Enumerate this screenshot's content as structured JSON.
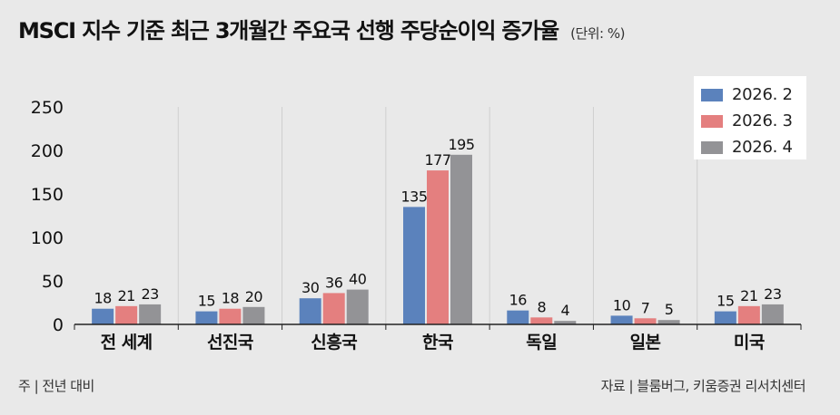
{
  "title": "MSCI 지수 기준 최근 3개월간 주요국 선행 주당순이익 증가율",
  "unit": "(단위: %)",
  "footer": {
    "note": "주 | 전년 대비",
    "source": "자료 |  블룸버그, 키움증권 리서치센터"
  },
  "colors": {
    "s1": "#5b82bc",
    "s2": "#e47f7f",
    "s3": "#939396",
    "axis": "#222222",
    "grid": "#cfcfcf",
    "background": "#e9e9e9"
  },
  "chart_data": {
    "type": "bar",
    "categories": [
      "전 세계",
      "선진국",
      "신흥국",
      "한국",
      "독일",
      "일본",
      "미국"
    ],
    "series": [
      {
        "name": "2026. 2",
        "values": [
          18,
          15,
          30,
          135,
          16,
          10,
          15
        ]
      },
      {
        "name": "2026. 3",
        "values": [
          21,
          18,
          36,
          177,
          8,
          7,
          21
        ]
      },
      {
        "name": "2026. 4",
        "values": [
          23,
          20,
          40,
          195,
          4,
          5,
          23
        ]
      }
    ],
    "ylim": [
      0,
      250
    ],
    "yticks": [
      "0",
      "50",
      "100",
      "150",
      "200",
      "250"
    ],
    "legend_position": "top-right",
    "grid": "vertical separators"
  }
}
